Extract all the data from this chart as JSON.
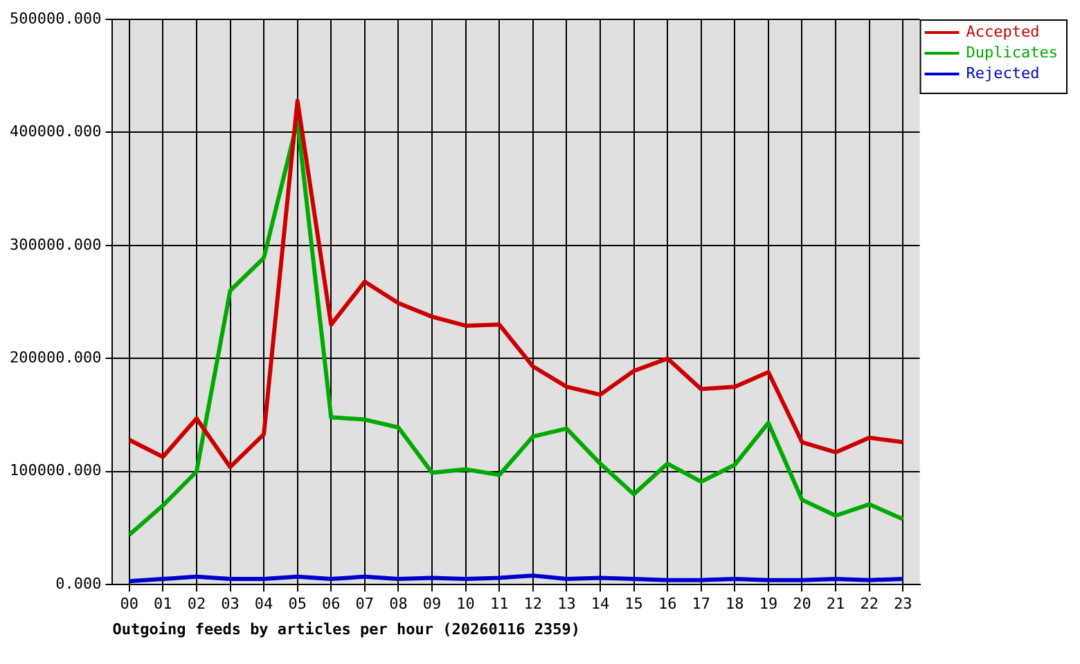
{
  "chart_data": {
    "type": "line",
    "xlabel": "Outgoing feeds by articles per hour (20260116 2359)",
    "categories": [
      "00",
      "01",
      "02",
      "03",
      "04",
      "05",
      "06",
      "07",
      "08",
      "09",
      "10",
      "11",
      "12",
      "13",
      "14",
      "15",
      "16",
      "17",
      "18",
      "19",
      "20",
      "21",
      "22",
      "23"
    ],
    "series": [
      {
        "name": "Accepted",
        "color": "#cc0000",
        "values": [
          128000,
          113000,
          147000,
          104000,
          133000,
          428000,
          230000,
          268000,
          249000,
          237000,
          229000,
          230000,
          193000,
          175000,
          168000,
          189000,
          200000,
          173000,
          175000,
          188000,
          126000,
          117000,
          130000,
          126000
        ]
      },
      {
        "name": "Duplicates",
        "color": "#00aa00",
        "values": [
          44000,
          70000,
          100000,
          260000,
          289000,
          410000,
          148000,
          146000,
          139000,
          99000,
          102000,
          97000,
          131000,
          138000,
          107000,
          80000,
          107000,
          91000,
          106000,
          143000,
          75000,
          61000,
          71000,
          58000
        ]
      },
      {
        "name": "Rejected",
        "color": "#0000cc",
        "values": [
          3000,
          5000,
          7000,
          5000,
          5000,
          7000,
          5000,
          7000,
          5000,
          6000,
          5000,
          6000,
          8000,
          5000,
          6000,
          5000,
          4000,
          4000,
          5000,
          4000,
          4000,
          5000,
          4000,
          5000
        ]
      }
    ],
    "ylim": [
      0,
      500000
    ],
    "yticks": [
      {
        "value": 0,
        "label": "0.000"
      },
      {
        "value": 100000,
        "label": "100000.000"
      },
      {
        "value": 200000,
        "label": "200000.000"
      },
      {
        "value": 300000,
        "label": "300000.000"
      },
      {
        "value": 400000,
        "label": "400000.000"
      },
      {
        "value": 500000,
        "label": "500000.000"
      }
    ],
    "grid": true,
    "legend": "top right",
    "marker": "none",
    "line_style": "solid"
  }
}
